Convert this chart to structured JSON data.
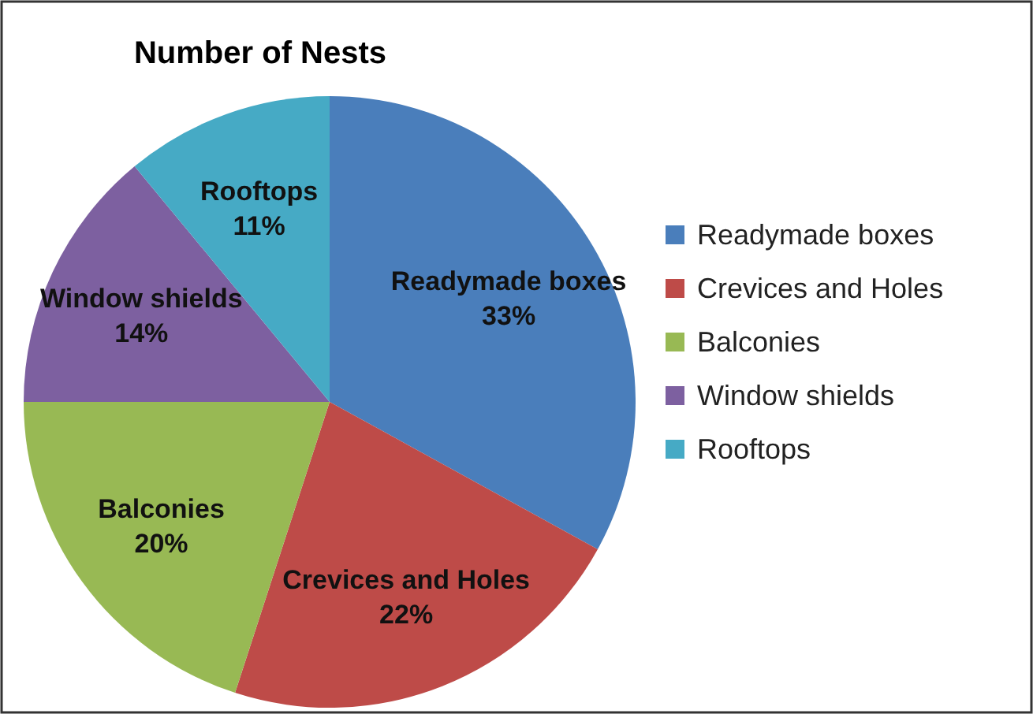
{
  "chart_data": {
    "type": "pie",
    "title": "Number of Nests",
    "categories": [
      "Readymade boxes",
      "Crevices and Holes",
      "Balconies",
      "Window shields",
      "Rooftops"
    ],
    "values": [
      33,
      22,
      20,
      14,
      11
    ],
    "colors": [
      "#4a7ebb",
      "#be4b48",
      "#98b954",
      "#7d60a0",
      "#46aac5"
    ],
    "value_labels": [
      "33%",
      "22%",
      "20%",
      "14%",
      "11%"
    ],
    "legend": "right"
  }
}
